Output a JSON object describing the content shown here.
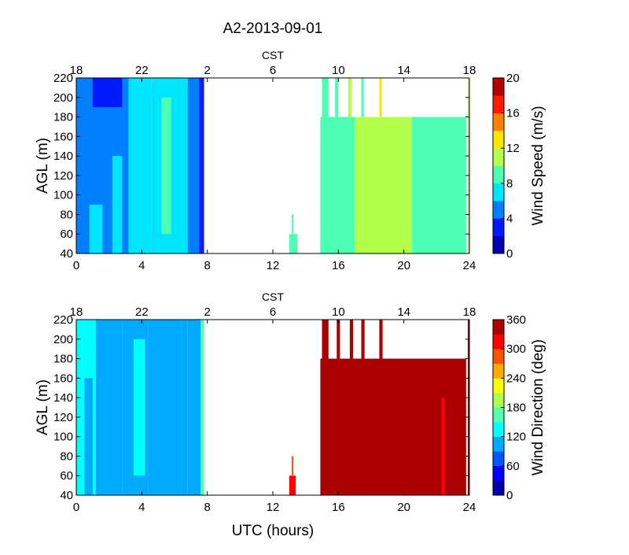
{
  "figure": {
    "title": "A2-2013-09-01",
    "xlabel": "UTC (hours)",
    "top_axis_label": "CST"
  },
  "chart_data": [
    {
      "type": "heatmap",
      "name": "wind-speed",
      "ylabel": "AGL (m)",
      "colorbar_label": "Wind Speed (m/s)",
      "xlim": [
        0,
        24
      ],
      "ylim": [
        40,
        220
      ],
      "x_ticks": [
        "0",
        "4",
        "8",
        "12",
        "16",
        "20",
        "24"
      ],
      "x_tick_values": [
        0,
        4,
        8,
        12,
        16,
        20,
        24
      ],
      "cst_ticks": [
        "18",
        "22",
        "2",
        "6",
        "10",
        "14",
        "18"
      ],
      "y_ticks": [
        "40",
        "60",
        "80",
        "100",
        "120",
        "140",
        "160",
        "180",
        "200",
        "220"
      ],
      "y_tick_values": [
        40,
        60,
        80,
        100,
        120,
        140,
        160,
        180,
        200,
        220
      ],
      "colorbar_ticks": [
        "0",
        "4",
        "8",
        "12",
        "16",
        "20"
      ],
      "colorbar_range": [
        0,
        20
      ],
      "levels": 10,
      "regions": [
        {
          "x": [
            0,
            3.2
          ],
          "y": [
            40,
            220
          ],
          "value": 5.5
        },
        {
          "x": [
            0.8,
            1.6
          ],
          "y": [
            40,
            90
          ],
          "value": 6.5
        },
        {
          "x": [
            2.2,
            2.8
          ],
          "y": [
            40,
            140
          ],
          "value": 6.5
        },
        {
          "x": [
            1.0,
            2.8
          ],
          "y": [
            190,
            220
          ],
          "value": 3.5
        },
        {
          "x": [
            3.2,
            4.6
          ],
          "y": [
            40,
            220
          ],
          "value": 7.5
        },
        {
          "x": [
            4.6,
            6.8
          ],
          "y": [
            40,
            220
          ],
          "value": 6.5
        },
        {
          "x": [
            5.2,
            5.8
          ],
          "y": [
            60,
            200
          ],
          "value": 8.5
        },
        {
          "x": [
            6.8,
            7.5
          ],
          "y": [
            40,
            220
          ],
          "value": 4.5
        },
        {
          "x": [
            7.5,
            7.8
          ],
          "y": [
            40,
            220
          ],
          "value": 2.5
        },
        {
          "x": [
            13.0,
            13.5
          ],
          "y": [
            40,
            60
          ],
          "value": 8.5
        },
        {
          "x": [
            13.15,
            13.25
          ],
          "y": [
            60,
            80
          ],
          "value": 8.5
        },
        {
          "x": [
            14.9,
            17.0
          ],
          "y": [
            40,
            180
          ],
          "value": 9.5
        },
        {
          "x": [
            17.0,
            20.5
          ],
          "y": [
            40,
            180
          ],
          "value": 11
        },
        {
          "x": [
            20.5,
            23.8
          ],
          "y": [
            40,
            180
          ],
          "value": 9.5
        },
        {
          "x": [
            15.0,
            15.4
          ],
          "y": [
            180,
            220
          ],
          "value": 9.5
        },
        {
          "x": [
            15.8,
            16.0
          ],
          "y": [
            180,
            220
          ],
          "value": 9.5
        },
        {
          "x": [
            16.6,
            16.8
          ],
          "y": [
            180,
            220
          ],
          "value": 10.5
        },
        {
          "x": [
            17.4,
            17.55
          ],
          "y": [
            180,
            220
          ],
          "value": 9.5
        },
        {
          "x": [
            18.5,
            18.65
          ],
          "y": [
            180,
            220
          ],
          "value": 12.5
        },
        {
          "x": [
            23.9,
            24.0
          ],
          "y": [
            40,
            220
          ],
          "value": 10.5
        }
      ]
    },
    {
      "type": "heatmap",
      "name": "wind-direction",
      "ylabel": "AGL (m)",
      "colorbar_label": "Wind Direction (deg)",
      "xlim": [
        0,
        24
      ],
      "ylim": [
        40,
        220
      ],
      "x_ticks": [
        "0",
        "4",
        "8",
        "12",
        "16",
        "20",
        "24"
      ],
      "x_tick_values": [
        0,
        4,
        8,
        12,
        16,
        20,
        24
      ],
      "cst_ticks": [
        "18",
        "22",
        "2",
        "6",
        "10",
        "14",
        "18"
      ],
      "y_ticks": [
        "40",
        "60",
        "80",
        "100",
        "120",
        "140",
        "160",
        "180",
        "200",
        "220"
      ],
      "y_tick_values": [
        40,
        60,
        80,
        100,
        120,
        140,
        160,
        180,
        200,
        220
      ],
      "colorbar_ticks": [
        "0",
        "60",
        "120",
        "180",
        "240",
        "300",
        "360"
      ],
      "colorbar_range": [
        0,
        360
      ],
      "levels": 12,
      "regions": [
        {
          "x": [
            0,
            1.2
          ],
          "y": [
            40,
            220
          ],
          "value": 140
        },
        {
          "x": [
            1.2,
            2.8
          ],
          "y": [
            40,
            220
          ],
          "value": 115
        },
        {
          "x": [
            0.5,
            1.0
          ],
          "y": [
            40,
            160
          ],
          "value": 110
        },
        {
          "x": [
            2.8,
            4.4
          ],
          "y": [
            40,
            220
          ],
          "value": 100
        },
        {
          "x": [
            4.4,
            6.8
          ],
          "y": [
            40,
            220
          ],
          "value": 100
        },
        {
          "x": [
            3.5,
            4.2
          ],
          "y": [
            60,
            200
          ],
          "value": 140
        },
        {
          "x": [
            6.8,
            7.6
          ],
          "y": [
            40,
            220
          ],
          "value": 110
        },
        {
          "x": [
            7.6,
            7.8
          ],
          "y": [
            40,
            220
          ],
          "value": 170
        },
        {
          "x": [
            13.0,
            13.4
          ],
          "y": [
            40,
            60
          ],
          "value": 310
        },
        {
          "x": [
            13.15,
            13.25
          ],
          "y": [
            60,
            80
          ],
          "value": 290
        },
        {
          "x": [
            14.9,
            23.8
          ],
          "y": [
            40,
            180
          ],
          "value": 350
        },
        {
          "x": [
            21.9,
            22.1
          ],
          "y": [
            40,
            160
          ],
          "value": 330
        },
        {
          "x": [
            22.3,
            22.5
          ],
          "y": [
            40,
            140
          ],
          "value": 320
        },
        {
          "x": [
            15.0,
            15.4
          ],
          "y": [
            180,
            220
          ],
          "value": 350
        },
        {
          "x": [
            15.9,
            16.1
          ],
          "y": [
            180,
            220
          ],
          "value": 350
        },
        {
          "x": [
            16.7,
            16.9
          ],
          "y": [
            180,
            220
          ],
          "value": 350
        },
        {
          "x": [
            17.4,
            17.6
          ],
          "y": [
            180,
            220
          ],
          "value": 350
        },
        {
          "x": [
            18.5,
            18.7
          ],
          "y": [
            180,
            220
          ],
          "value": 350
        },
        {
          "x": [
            23.9,
            24.0
          ],
          "y": [
            40,
            220
          ],
          "value": 350
        }
      ]
    }
  ]
}
